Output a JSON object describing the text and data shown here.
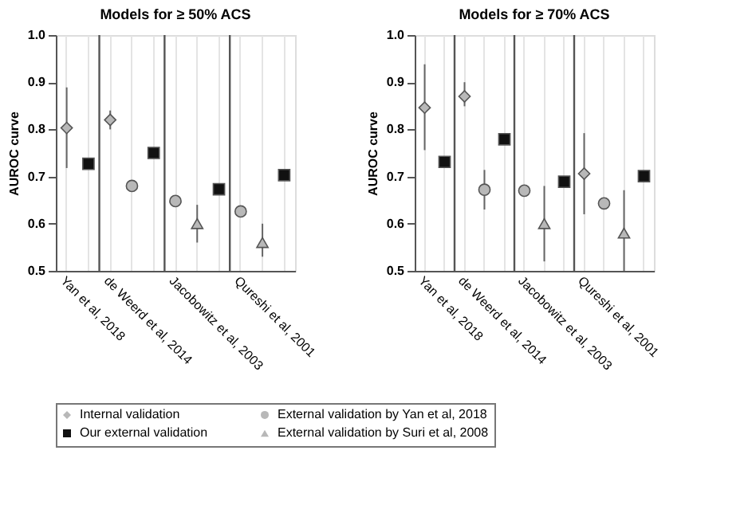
{
  "chart_data": [
    {
      "type": "scatter",
      "title": "Models for ≥ 50% ACS",
      "ylabel": "AUROC curve",
      "ylim": [
        0.5,
        1.0
      ],
      "yticks": [
        0.5,
        0.6,
        0.7,
        0.8,
        0.9,
        {
          "value": 1.0,
          "label": "1.0"
        }
      ],
      "categories": [
        "Yan et al, 2018",
        null,
        "de Weerd et al, 2014",
        null,
        null,
        "Jacobowitz et al, 2003",
        null,
        null,
        "Qureshi et al, 2001",
        null,
        null
      ],
      "grid": "x",
      "legend": "bottom",
      "series": [
        {
          "name": "Internal validation",
          "color": "#b8b8b8",
          "marker": "diamond",
          "values": [
            0.803,
            null,
            0.82,
            null,
            null,
            null,
            null,
            null,
            null,
            null,
            null
          ],
          "errors": [
            [
              0.718,
              0.889
            ],
            null,
            [
              0.8,
              0.84
            ],
            null,
            null,
            null,
            null,
            null,
            null,
            null,
            null
          ]
        },
        {
          "name": "External validation by Yan et al, 2018",
          "color": "#b8b8b8",
          "marker": "circle",
          "values": [
            null,
            null,
            null,
            0.68,
            null,
            0.648,
            null,
            null,
            0.626,
            null,
            null
          ],
          "errors": [
            null,
            null,
            null,
            [
              0.67,
              0.69
            ],
            null,
            [
              0.64,
              0.66
            ],
            null,
            null,
            [
              0.62,
              0.635
            ],
            null,
            null
          ]
        },
        {
          "name": "Our external validation",
          "color": "#111111",
          "marker": "square",
          "values": [
            null,
            0.727,
            null,
            null,
            0.75,
            null,
            null,
            0.673,
            null,
            null,
            0.703
          ]
        },
        {
          "name": "External validation by Suri et al, 2008",
          "color": "#b8b8b8",
          "marker": "triangle",
          "values": [
            null,
            null,
            null,
            null,
            null,
            null,
            0.6,
            null,
            null,
            0.56,
            null
          ],
          "errors": [
            null,
            null,
            null,
            null,
            null,
            null,
            [
              0.56,
              0.64
            ],
            null,
            null,
            [
              0.53,
              0.6
            ],
            null
          ]
        }
      ]
    },
    {
      "type": "scatter",
      "title": "Models for ≥ 70% ACS",
      "ylabel": "AUROC curve",
      "ylim": [
        0.5,
        1.0
      ],
      "yticks": [
        0.5,
        0.6,
        0.7,
        0.8,
        0.9,
        {
          "value": 1.0,
          "label": "1.0"
        }
      ],
      "categories": [
        "Yan et al, 2018",
        null,
        "de Weerd et al, 2014",
        null,
        null,
        "Jacobowitz et al, 2003",
        null,
        null,
        "Qureshi et al, 2001",
        null,
        null,
        null
      ],
      "grid": "x",
      "series": [
        {
          "name": "Internal validation",
          "color": "#b8b8b8",
          "marker": "diamond",
          "values": [
            0.846,
            null,
            0.87,
            null,
            null,
            null,
            null,
            null,
            0.706,
            null,
            null,
            null
          ],
          "errors": [
            [
              0.756,
              0.938
            ],
            null,
            [
              0.849,
              0.9
            ],
            null,
            null,
            null,
            null,
            null,
            [
              0.62,
              0.792
            ],
            null,
            null,
            null
          ]
        },
        {
          "name": "External validation by Yan et al, 2018",
          "color": "#b8b8b8",
          "marker": "circle",
          "values": [
            null,
            null,
            null,
            0.672,
            null,
            0.67,
            null,
            null,
            null,
            0.643,
            null,
            null
          ],
          "errors": [
            null,
            null,
            null,
            [
              0.63,
              0.714
            ],
            null,
            [
              0.66,
              0.68
            ],
            null,
            null,
            null,
            [
              0.635,
              0.655
            ],
            null,
            null
          ]
        },
        {
          "name": "Our external validation",
          "color": "#111111",
          "marker": "square",
          "values": [
            null,
            0.731,
            null,
            null,
            0.779,
            null,
            null,
            0.689,
            null,
            null,
            null,
            0.701
          ],
          "errors": [
            null,
            null,
            null,
            null,
            null,
            null,
            null,
            [
              0.68,
              0.7
            ],
            null,
            null,
            null,
            [
              0.695,
              0.71
            ]
          ]
        },
        {
          "name": "External validation by Suri et al, 2008",
          "color": "#b8b8b8",
          "marker": "triangle",
          "values": [
            null,
            null,
            null,
            null,
            null,
            null,
            0.6,
            null,
            null,
            null,
            0.58,
            null
          ],
          "errors": [
            null,
            null,
            null,
            null,
            null,
            null,
            [
              0.52,
              0.68
            ],
            null,
            null,
            null,
            [
              0.5,
              0.671
            ],
            null
          ]
        }
      ]
    }
  ]
}
